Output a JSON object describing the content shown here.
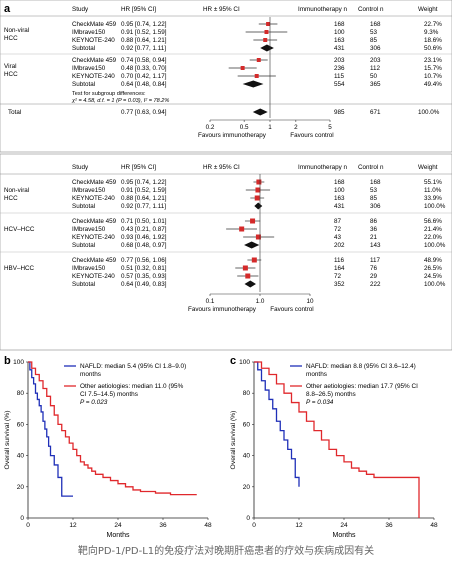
{
  "panel_a": {
    "label": "a",
    "forest1": {
      "headers": {
        "study": "Study",
        "hr": "HR [95% CI]",
        "plot": "HR ± 95% CI",
        "immuno": "Immunotherapy n",
        "control": "Control n",
        "weight": "Weight"
      },
      "groups": [
        {
          "label_lines": [
            "Non-viral",
            "HCC"
          ],
          "rows": [
            {
              "study": "CheckMate 459",
              "hr_text": "0.95 [0.74, 1.22]",
              "hr": 0.95,
              "lo": 0.74,
              "hi": 1.22,
              "immuno": "168",
              "control": "168",
              "weight": "22.7%"
            },
            {
              "study": "IMbrave150",
              "hr_text": "0.91 [0.52, 1.59]",
              "hr": 0.91,
              "lo": 0.52,
              "hi": 1.59,
              "immuno": "100",
              "control": "53",
              "weight": "9.3%"
            },
            {
              "study": "KEYNOTE-240",
              "hr_text": "0.88 [0.64, 1.21]",
              "hr": 0.88,
              "lo": 0.64,
              "hi": 1.21,
              "immuno": "163",
              "control": "85",
              "weight": "18.6%"
            },
            {
              "study": "Subtotal",
              "hr_text": "0.92 [0.77, 1.11]",
              "hr": 0.92,
              "lo": 0.77,
              "hi": 1.11,
              "immuno": "431",
              "control": "306",
              "weight": "50.6%",
              "subtotal": true
            }
          ]
        },
        {
          "label_lines": [
            "Viral",
            "HCC"
          ],
          "rows": [
            {
              "study": "CheckMate 459",
              "hr_text": "0.74 [0.58, 0.94]",
              "hr": 0.74,
              "lo": 0.58,
              "hi": 0.94,
              "immuno": "203",
              "control": "203",
              "weight": "23.1%"
            },
            {
              "study": "IMbrave150",
              "hr_text": "0.48 [0.33, 0.70]",
              "hr": 0.48,
              "lo": 0.33,
              "hi": 0.7,
              "immuno": "236",
              "control": "112",
              "weight": "15.7%"
            },
            {
              "study": "KEYNOTE-240",
              "hr_text": "0.70 [0.42, 1.17]",
              "hr": 0.7,
              "lo": 0.42,
              "hi": 1.17,
              "immuno": "115",
              "control": "50",
              "weight": "10.7%"
            },
            {
              "study": "Subtotal",
              "hr_text": "0.64 [0.48, 0.84]",
              "hr": 0.64,
              "lo": 0.48,
              "hi": 0.84,
              "immuno": "554",
              "control": "365",
              "weight": "49.4%",
              "subtotal": true
            }
          ]
        }
      ],
      "test_line1": "Test for subgroup differences:",
      "test_line2": "χ² = 4.58, d.f. = 1 (P = 0.03), I² = 78.2%",
      "total": {
        "study": "Total",
        "hr_text": "0.77 [0.63, 0.94]",
        "hr": 0.77,
        "lo": 0.63,
        "hi": 0.94,
        "immuno": "985",
        "control": "671",
        "weight": "100.0%"
      },
      "axis_ticks": [
        "0.2",
        "0.5",
        "1",
        "2",
        "5"
      ],
      "favours_left": "Favours immunotherapy",
      "favours_right": "Favours control"
    },
    "forest2": {
      "headers": {
        "study": "Study",
        "hr": "HR [95% CI]",
        "plot": "HR ± 95% CI",
        "immuno": "Immunotherapy n",
        "control": "Control n",
        "weight": "Weight"
      },
      "groups": [
        {
          "label_lines": [
            "Non-viral",
            "HCC"
          ],
          "rows": [
            {
              "study": "CheckMate 459",
              "hr_text": "0.95 [0.74, 1.22]",
              "hr": 0.95,
              "lo": 0.74,
              "hi": 1.22,
              "immuno": "168",
              "control": "168",
              "weight": "55.1%"
            },
            {
              "study": "IMbrave150",
              "hr_text": "0.91 [0.52, 1.59]",
              "hr": 0.91,
              "lo": 0.52,
              "hi": 1.59,
              "immuno": "100",
              "control": "53",
              "weight": "11.0%"
            },
            {
              "study": "KEYNOTE-240",
              "hr_text": "0.88 [0.64, 1.21]",
              "hr": 0.88,
              "lo": 0.64,
              "hi": 1.21,
              "immuno": "163",
              "control": "85",
              "weight": "33.9%"
            },
            {
              "study": "Subtotal",
              "hr_text": "0.92 [0.77, 1.11]",
              "hr": 0.92,
              "lo": 0.77,
              "hi": 1.11,
              "immuno": "431",
              "control": "306",
              "weight": "100.0%",
              "subtotal": true
            }
          ]
        },
        {
          "label_lines": [
            "HCV–HCC"
          ],
          "rows": [
            {
              "study": "CheckMate 459",
              "hr_text": "0.71 [0.50, 1.01]",
              "hr": 0.71,
              "lo": 0.5,
              "hi": 1.01,
              "immuno": "87",
              "control": "86",
              "weight": "56.6%"
            },
            {
              "study": "IMbrave150",
              "hr_text": "0.43 [0.21, 0.87]",
              "hr": 0.43,
              "lo": 0.21,
              "hi": 0.87,
              "immuno": "72",
              "control": "36",
              "weight": "21.4%"
            },
            {
              "study": "KEYNOTE-240",
              "hr_text": "0.93 [0.46, 1.92]",
              "hr": 0.93,
              "lo": 0.46,
              "hi": 1.92,
              "immuno": "43",
              "control": "21",
              "weight": "22.0%"
            },
            {
              "study": "Subtotal",
              "hr_text": "0.68 [0.48, 0.97]",
              "hr": 0.68,
              "lo": 0.48,
              "hi": 0.97,
              "immuno": "202",
              "control": "143",
              "weight": "100.0%",
              "subtotal": true
            }
          ]
        },
        {
          "label_lines": [
            "HBV–HCC"
          ],
          "rows": [
            {
              "study": "CheckMate 459",
              "hr_text": "0.77 [0.56, 1.06]",
              "hr": 0.77,
              "lo": 0.56,
              "hi": 1.06,
              "immuno": "116",
              "control": "117",
              "weight": "48.9%"
            },
            {
              "study": "IMbrave150",
              "hr_text": "0.51 [0.32, 0.81]",
              "hr": 0.51,
              "lo": 0.32,
              "hi": 0.81,
              "immuno": "164",
              "control": "76",
              "weight": "26.5%"
            },
            {
              "study": "KEYNOTE-240",
              "hr_text": "0.57 [0.35, 0.93]",
              "hr": 0.57,
              "lo": 0.35,
              "hi": 0.93,
              "immuno": "72",
              "control": "29",
              "weight": "24.5%"
            },
            {
              "study": "Subtotal",
              "hr_text": "0.64 [0.49, 0.83]",
              "hr": 0.64,
              "lo": 0.49,
              "hi": 0.83,
              "immuno": "352",
              "control": "222",
              "weight": "100.0%",
              "subtotal": true
            }
          ]
        }
      ],
      "axis_ticks": [
        "0.1",
        "1.0",
        "10"
      ],
      "favours_left": "Favours immunotherapy",
      "favours_right": "Favours control"
    }
  },
  "panel_b": {
    "label": "b",
    "chart_data": {
      "type": "line",
      "ylabel": "Overall survival (%)",
      "xlabel": "Months",
      "x_ticks": [
        "0",
        "12",
        "24",
        "36",
        "48"
      ],
      "y_ticks": [
        "0",
        "20",
        "40",
        "60",
        "80",
        "100"
      ],
      "xlim": [
        0,
        48
      ],
      "ylim": [
        0,
        100
      ],
      "legend_nafld_lines": [
        "NAFLD: median 5.4 (95% CI 1.8–9.0)",
        "months"
      ],
      "legend_other_lines": [
        "Other aetiologies: median 11.0 (95%",
        "CI 7.5–14.5) months"
      ],
      "p_value": "P = 0.023",
      "series": [
        {
          "name": "NAFLD",
          "color": "#1f2fb8",
          "x": [
            0,
            0.5,
            1,
            1.5,
            2,
            2.5,
            3,
            3.5,
            4,
            4.5,
            5,
            5.5,
            6,
            7,
            8,
            9,
            12
          ],
          "y": [
            100,
            95,
            90,
            86,
            80,
            76,
            72,
            68,
            62,
            57,
            52,
            46,
            40,
            34,
            26,
            14,
            14
          ]
        },
        {
          "name": "Other aetiologies",
          "color": "#e0282c",
          "x": [
            0,
            1,
            2,
            3,
            4,
            5,
            6,
            7,
            8,
            9,
            10,
            11,
            12,
            13,
            14,
            15,
            16,
            17,
            18,
            20,
            22,
            24,
            26,
            28,
            30,
            34,
            38,
            42,
            45
          ],
          "y": [
            100,
            96,
            92,
            88,
            83,
            78,
            72,
            66,
            60,
            56,
            52,
            48,
            44,
            40,
            36,
            34,
            32,
            30,
            28,
            26,
            24,
            22,
            20,
            18,
            17,
            16,
            15,
            15,
            15
          ]
        }
      ]
    }
  },
  "panel_c": {
    "label": "c",
    "chart_data": {
      "type": "line",
      "ylabel": "Overall survival (%)",
      "xlabel": "Months",
      "x_ticks": [
        "0",
        "12",
        "24",
        "36",
        "48"
      ],
      "y_ticks": [
        "0",
        "20",
        "40",
        "60",
        "80",
        "100"
      ],
      "xlim": [
        0,
        48
      ],
      "ylim": [
        0,
        100
      ],
      "legend_nafld_lines": [
        "NAFLD: median 8.8 (95% CI 3.6–12.4)",
        "months"
      ],
      "legend_other_lines": [
        "Other aetiologies: median 17.7 (95% CI",
        "8.8–26.5) months"
      ],
      "p_value": "P = 0.034",
      "series": [
        {
          "name": "NAFLD",
          "color": "#1f2fb8",
          "x": [
            0,
            1,
            2,
            3,
            4,
            5,
            6,
            7,
            8,
            9,
            10,
            11,
            12
          ],
          "y": [
            100,
            95,
            88,
            82,
            76,
            70,
            62,
            56,
            50,
            44,
            38,
            26,
            20
          ]
        },
        {
          "name": "Other aetiologies",
          "color": "#e0282c",
          "x": [
            0,
            2,
            4,
            6,
            8,
            10,
            12,
            14,
            16,
            18,
            20,
            22,
            24,
            26,
            28,
            30,
            32,
            36,
            40,
            44
          ],
          "y": [
            100,
            96,
            92,
            86,
            80,
            74,
            68,
            62,
            56,
            50,
            44,
            40,
            36,
            32,
            30,
            28,
            26,
            26,
            26,
            0
          ]
        }
      ]
    }
  },
  "caption": "靶向PD-1/PD-L1的免疫疗法对晚期肝癌患者的疗效与疾病成因有关"
}
